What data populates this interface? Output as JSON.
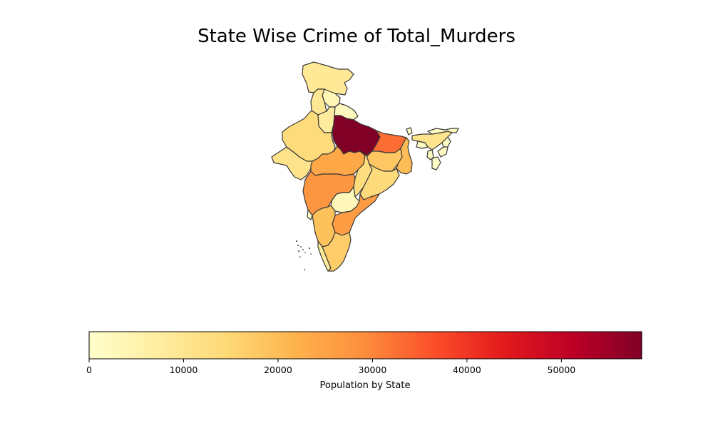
{
  "title": "State Wise Crime of Total_Murders",
  "colorbar": {
    "label": "Population by State",
    "ticks": [
      0,
      10000,
      20000,
      30000,
      40000,
      50000
    ],
    "range": [
      0,
      58500
    ],
    "colormap": "YlOrRd",
    "colors": [
      "#ffffcc",
      "#ffeda0",
      "#fed976",
      "#feb24c",
      "#fd8d3c",
      "#fc4e2a",
      "#e31a1c",
      "#bd0026",
      "#800026"
    ]
  },
  "chart_data": {
    "type": "choropleth",
    "title": "State Wise Crime of Total_Murders",
    "legend_label": "Population by State",
    "range": [
      0,
      58500
    ],
    "regions": [
      {
        "id": "jammu-kashmir",
        "value": 9000
      },
      {
        "id": "himachal-pradesh",
        "value": 4000
      },
      {
        "id": "punjab",
        "value": 9500
      },
      {
        "id": "haryana",
        "value": 7500
      },
      {
        "id": "uttarakhand",
        "value": 2500
      },
      {
        "id": "uttar-pradesh",
        "value": 58500
      },
      {
        "id": "rajasthan",
        "value": 13500
      },
      {
        "id": "gujarat",
        "value": 11000
      },
      {
        "id": "madhya-pradesh",
        "value": 24000
      },
      {
        "id": "bihar",
        "value": 33000
      },
      {
        "id": "jharkhand",
        "value": 18000
      },
      {
        "id": "west-bengal",
        "value": 20000
      },
      {
        "id": "chhattisgarh",
        "value": 13000
      },
      {
        "id": "odisha",
        "value": 14000
      },
      {
        "id": "maharashtra",
        "value": 27500
      },
      {
        "id": "telangana",
        "value": 3000
      },
      {
        "id": "andhra-pradesh",
        "value": 26000
      },
      {
        "id": "karnataka",
        "value": 19000
      },
      {
        "id": "goa",
        "value": 1000
      },
      {
        "id": "kerala",
        "value": 8000
      },
      {
        "id": "tamil-nadu",
        "value": 17000
      },
      {
        "id": "sikkim",
        "value": 500
      },
      {
        "id": "assam",
        "value": 10500
      },
      {
        "id": "arunachal-pradesh",
        "value": 1500
      },
      {
        "id": "nagaland",
        "value": 1000
      },
      {
        "id": "meghalaya",
        "value": 1500
      },
      {
        "id": "manipur",
        "value": 1800
      },
      {
        "id": "tripura",
        "value": 2200
      },
      {
        "id": "mizoram",
        "value": 600
      }
    ]
  }
}
